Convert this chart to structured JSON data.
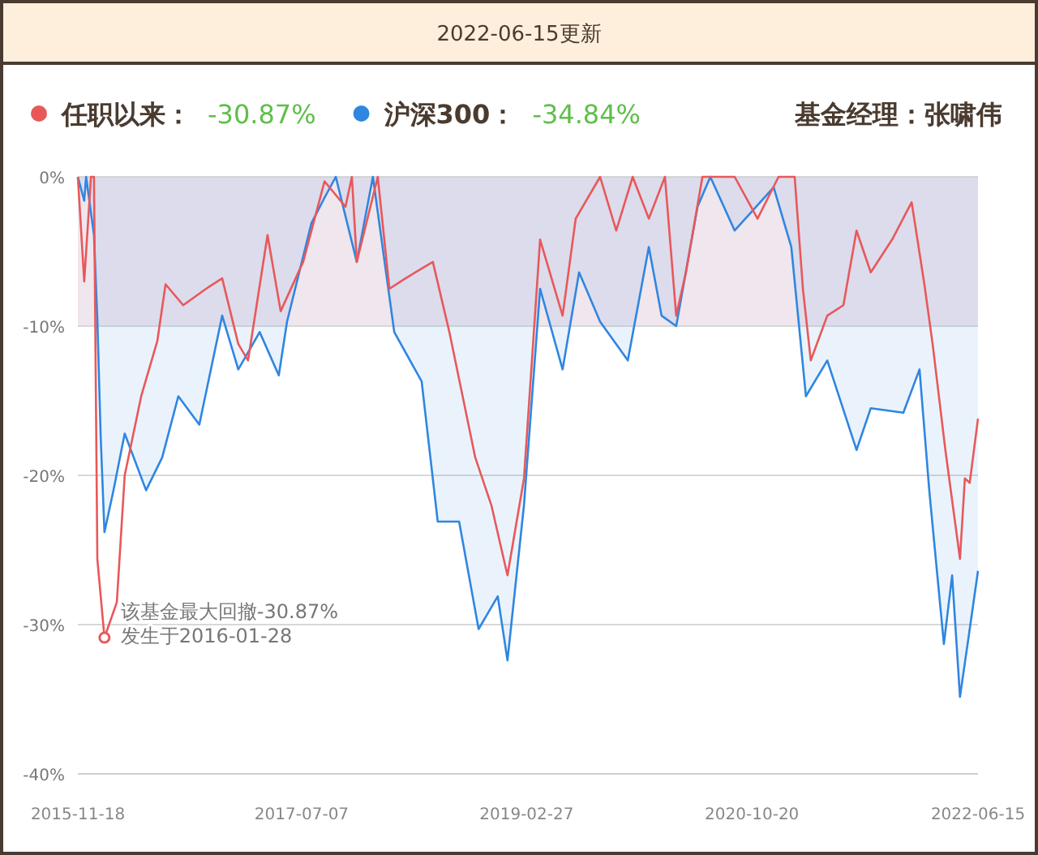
{
  "chart_data": {
    "type": "line",
    "title": "2022-06-15更新",
    "xlim": [
      "2015-11-18",
      "2022-06-15"
    ],
    "xticks": [
      {
        "value": "2015-11-18",
        "label": "2015-11-18"
      },
      {
        "value": "2017-07-07",
        "label": "2017-07-07"
      },
      {
        "value": "2019-02-27",
        "label": "2019-02-27"
      },
      {
        "value": "2020-10-20",
        "label": "2020-10-20"
      },
      {
        "value": "2022-06-15",
        "label": "2022-06-15"
      }
    ],
    "ylim": [
      -40,
      0
    ],
    "yticks": [
      {
        "value": 0,
        "label": "0%"
      },
      {
        "value": -10,
        "label": "-10%"
      },
      {
        "value": -20,
        "label": "-20%"
      },
      {
        "value": -30,
        "label": "-30%"
      },
      {
        "value": -40,
        "label": "-40%"
      }
    ],
    "grid": "y",
    "legend": "top left",
    "bands": [
      {
        "axis": "y",
        "from": 0,
        "to": -10,
        "color": "#f0e6ee"
      }
    ],
    "series": [
      {
        "name": "沪深300：",
        "type": "area",
        "color": "#2f86e0",
        "x": [
          "2015-11-18",
          "2015-12-05",
          "2015-12-10",
          "2015-12-31",
          "2016-01-09",
          "2016-01-18",
          "2016-01-28",
          "2016-02-21",
          "2016-03-22",
          "2016-05-18",
          "2016-06-30",
          "2016-08-12",
          "2016-10-07",
          "2016-12-07",
          "2017-01-19",
          "2017-03-17",
          "2017-05-07",
          "2017-05-29",
          "2017-08-02",
          "2017-09-06",
          "2017-10-06",
          "2017-12-01",
          "2018-01-13",
          "2018-03-11",
          "2018-05-23",
          "2018-07-05",
          "2018-08-31",
          "2018-10-22",
          "2018-12-12",
          "2019-01-07",
          "2019-02-20",
          "2019-04-04",
          "2019-06-03",
          "2019-07-17",
          "2019-09-11",
          "2019-11-24",
          "2020-01-19",
          "2020-02-22",
          "2020-04-01",
          "2020-05-28",
          "2020-07-01",
          "2020-09-04",
          "2020-12-17",
          "2021-02-02",
          "2021-03-13",
          "2021-05-09",
          "2021-07-26",
          "2021-09-02",
          "2021-11-28",
          "2022-01-10",
          "2022-02-05",
          "2022-03-16",
          "2022-04-07",
          "2022-04-28",
          "2022-05-20",
          "2022-06-15"
        ],
        "values": [
          0,
          -1.6,
          0,
          -3.9,
          -9.6,
          -17.5,
          -23.8,
          -21,
          -17.2,
          -21,
          -18.8,
          -14.7,
          -16.6,
          -9.3,
          -12.9,
          -10.4,
          -13.3,
          -9.7,
          -3.1,
          -1.4,
          0,
          -5.7,
          0,
          -10.4,
          -13.7,
          -23.1,
          -23.1,
          -30.3,
          -28.1,
          -32.4,
          -22,
          -7.5,
          -12.9,
          -6.4,
          -9.7,
          -12.3,
          -4.7,
          -9.3,
          -10,
          -2,
          0,
          -3.6,
          -0.7,
          -4.7,
          -14.7,
          -12.3,
          -18.3,
          -15.5,
          -15.8,
          -12.9,
          -21,
          -31.3,
          -26.7,
          -34.84,
          -31,
          -26.4
        ]
      },
      {
        "name": "任职以来：",
        "type": "line",
        "color": "#e8585a",
        "x": [
          "2015-11-18",
          "2015-12-05",
          "2015-12-23",
          "2015-12-31",
          "2016-01-09",
          "2016-01-28",
          "2016-03-01",
          "2016-03-22",
          "2016-05-05",
          "2016-06-17",
          "2016-07-09",
          "2016-08-25",
          "2016-10-25",
          "2016-12-07",
          "2017-01-19",
          "2017-02-14",
          "2017-04-07",
          "2017-05-12",
          "2017-07-11",
          "2017-09-06",
          "2017-11-01",
          "2017-11-18",
          "2017-12-01",
          "2018-01-26",
          "2018-02-26",
          "2018-04-10",
          "2018-06-22",
          "2018-08-05",
          "2018-10-13",
          "2018-11-25",
          "2019-01-07",
          "2019-02-20",
          "2019-04-04",
          "2019-06-03",
          "2019-07-08",
          "2019-09-11",
          "2019-10-24",
          "2019-12-07",
          "2020-01-19",
          "2020-03-02",
          "2020-04-01",
          "2020-04-27",
          "2020-06-10",
          "2020-09-04",
          "2020-11-04",
          "2020-12-30",
          "2021-02-11",
          "2021-03-05",
          "2021-03-26",
          "2021-05-09",
          "2021-06-21",
          "2021-07-26",
          "2021-09-02",
          "2021-10-29",
          "2021-12-20",
          "2022-01-23",
          "2022-02-14",
          "2022-03-20",
          "2022-04-28",
          "2022-05-11",
          "2022-05-24",
          "2022-06-15"
        ],
        "values": [
          0,
          -7,
          0,
          0,
          -25.6,
          -30.87,
          -28.5,
          -20,
          -14.7,
          -11,
          -7.2,
          -8.6,
          -7.5,
          -6.8,
          -11.2,
          -12.3,
          -3.9,
          -9,
          -5.7,
          -0.3,
          -2,
          0,
          -5.7,
          0,
          -7.5,
          -6.8,
          -5.7,
          -10.4,
          -18.8,
          -22,
          -26.7,
          -20.2,
          -4.2,
          -9.3,
          -2.8,
          0,
          -3.6,
          0,
          -2.8,
          0,
          -9.3,
          -6.4,
          0,
          0,
          -2.8,
          0,
          0,
          -7.5,
          -12.3,
          -9.3,
          -8.6,
          -3.6,
          -6.4,
          -4.2,
          -1.7,
          -7.2,
          -11.2,
          -18.3,
          -25.6,
          -20.2,
          -20.5,
          -16.2
        ]
      }
    ],
    "annotations": [
      "-30.87%",
      "-34.84%",
      "基金经理：张啸伟",
      {
        "text": "该基金最大回撤-30.87%",
        "x": "2016-01-28",
        "y": -30.87
      },
      {
        "text": "发生于2016-01-28",
        "x": "2016-01-28",
        "y": -30.87
      }
    ]
  }
}
